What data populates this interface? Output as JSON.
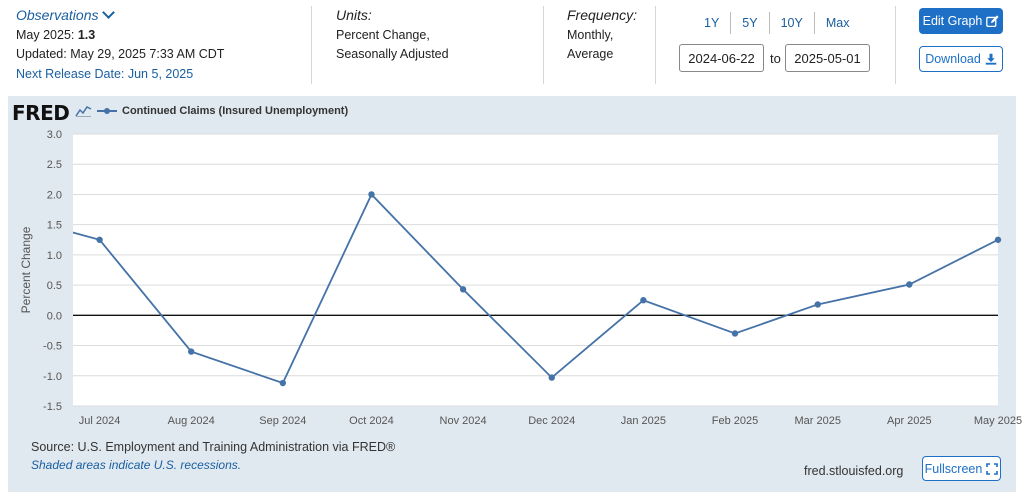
{
  "observations": {
    "title": "Observations",
    "date_label": "May 2025:",
    "value": "1.3",
    "updated": "Updated: May 29, 2025 7:33 AM CDT",
    "next_release": "Next Release Date: Jun 5, 2025"
  },
  "units": {
    "title": "Units:",
    "line1": "Percent Change,",
    "line2": "Seasonally Adjusted"
  },
  "frequency": {
    "title": "Frequency:",
    "line1": "Monthly,",
    "line2": "Average"
  },
  "range_buttons": [
    "1Y",
    "5Y",
    "10Y",
    "Max"
  ],
  "date_range": {
    "start": "2024-06-22",
    "to_label": "to",
    "end": "2025-05-01"
  },
  "buttons": {
    "edit_graph": "Edit Graph",
    "download": "Download",
    "fullscreen": "Fullscreen"
  },
  "logo": {
    "text": "FRED"
  },
  "footer": {
    "source": "Source: U.S. Employment and Training Administration via FRED®",
    "shaded": "Shaded areas indicate U.S. recessions.",
    "url": "fred.stlouisfed.org"
  },
  "colors": {
    "accent": "#1d70c6",
    "link": "#1a5fa0",
    "series": "#4572a7",
    "panel": "#e1e9f0"
  },
  "icons": {
    "edit": "pencil-square-icon",
    "download": "download-icon",
    "fullscreen": "fullscreen-icon",
    "dropdown": "chevron-down-icon",
    "logo_graph": "line-graph-icon"
  },
  "chart_data": {
    "type": "line",
    "legend": "Continued Claims (Insured Unemployment)",
    "ylabel": "Percent Change",
    "ylim": [
      -1.5,
      3.0
    ],
    "yticks": [
      "3.0",
      "2.5",
      "2.0",
      "1.5",
      "1.0",
      "0.5",
      "0.0",
      "-0.5",
      "-1.0",
      "-1.5"
    ],
    "xlim": [
      "2024-06-22",
      "2025-05-01"
    ],
    "xticks": [
      "Jul 2024",
      "Aug 2024",
      "Sep 2024",
      "Oct 2024",
      "Nov 2024",
      "Dec 2024",
      "Jan 2025",
      "Feb 2025",
      "Mar 2025",
      "Apr 2025",
      "May 2025"
    ],
    "series": [
      {
        "name": "Continued Claims (Insured Unemployment)",
        "x": [
          "2024-06-01",
          "2024-07-01",
          "2024-08-01",
          "2024-09-01",
          "2024-10-01",
          "2024-11-01",
          "2024-12-01",
          "2025-01-01",
          "2025-02-01",
          "2025-03-01",
          "2025-04-01",
          "2025-05-01"
        ],
        "values": [
          1.65,
          1.25,
          -0.6,
          -1.12,
          2.0,
          0.43,
          -1.03,
          0.25,
          -0.3,
          0.18,
          0.51,
          1.25
        ]
      }
    ],
    "zero_line": true,
    "grid": true
  }
}
